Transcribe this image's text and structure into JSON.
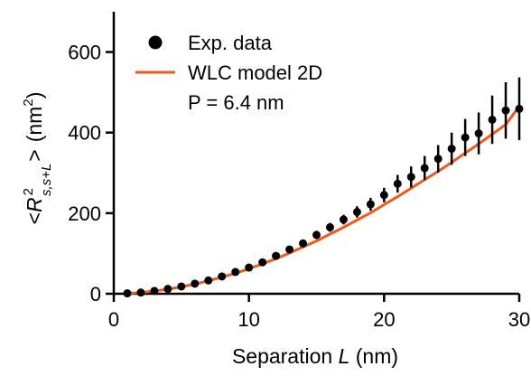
{
  "chart_data": {
    "type": "scatter",
    "xlabel_prefix": "Separation ",
    "xlabel_var": "L",
    "xlabel_suffix": " (nm)",
    "ylabel_open": "<",
    "ylabel_var": "R",
    "ylabel_sup": "2",
    "ylabel_sub": "s,s+L",
    "ylabel_close": ">",
    "ylabel_unit_open": "(nm",
    "ylabel_unit_sup": "2",
    "ylabel_unit_close": ")",
    "xlim": [
      0,
      30
    ],
    "ylim": [
      0,
      700
    ],
    "x_ticks": [
      0,
      10,
      20,
      30
    ],
    "y_ticks": [
      0,
      200,
      400,
      600
    ],
    "legend_placement": "top-left",
    "series": [
      {
        "name": "Exp. data",
        "kind": "points_with_error",
        "color": "#000000",
        "x": [
          1,
          2,
          3,
          4,
          5,
          6,
          7,
          8,
          9,
          10,
          11,
          12,
          13,
          14,
          15,
          16,
          17,
          18,
          19,
          20,
          21,
          22,
          23,
          24,
          25,
          26,
          27,
          28,
          29,
          30
        ],
        "y": [
          1,
          3,
          7,
          12,
          18,
          25,
          33,
          43,
          54,
          65,
          78,
          94,
          110,
          125,
          146,
          165,
          184,
          203,
          222,
          245,
          273,
          290,
          312,
          335,
          360,
          388,
          398,
          432,
          455,
          459
        ],
        "err": [
          1,
          1,
          2,
          2,
          3,
          3,
          4,
          4,
          5,
          5,
          6,
          7,
          8,
          9,
          10,
          11,
          12,
          14,
          16,
          18,
          22,
          26,
          30,
          34,
          40,
          46,
          52,
          60,
          70,
          78
        ]
      },
      {
        "name": "WLC model 2D",
        "kind": "line",
        "color": "#f05a1a",
        "x": [
          1,
          2,
          3,
          4,
          5,
          6,
          7,
          8,
          9,
          10,
          11,
          12,
          13,
          14,
          15,
          16,
          17,
          18,
          19,
          20,
          21,
          22,
          23,
          24,
          25,
          26,
          27,
          28,
          29,
          30
        ],
        "y": [
          1,
          3,
          7,
          11,
          17,
          24,
          32,
          41,
          51,
          62,
          74,
          87,
          101,
          116,
          131,
          148,
          165,
          183,
          201,
          221,
          241,
          262,
          283,
          304,
          326,
          349,
          372,
          396,
          420,
          465
        ]
      }
    ],
    "annotation": "P = 6.4 nm"
  }
}
